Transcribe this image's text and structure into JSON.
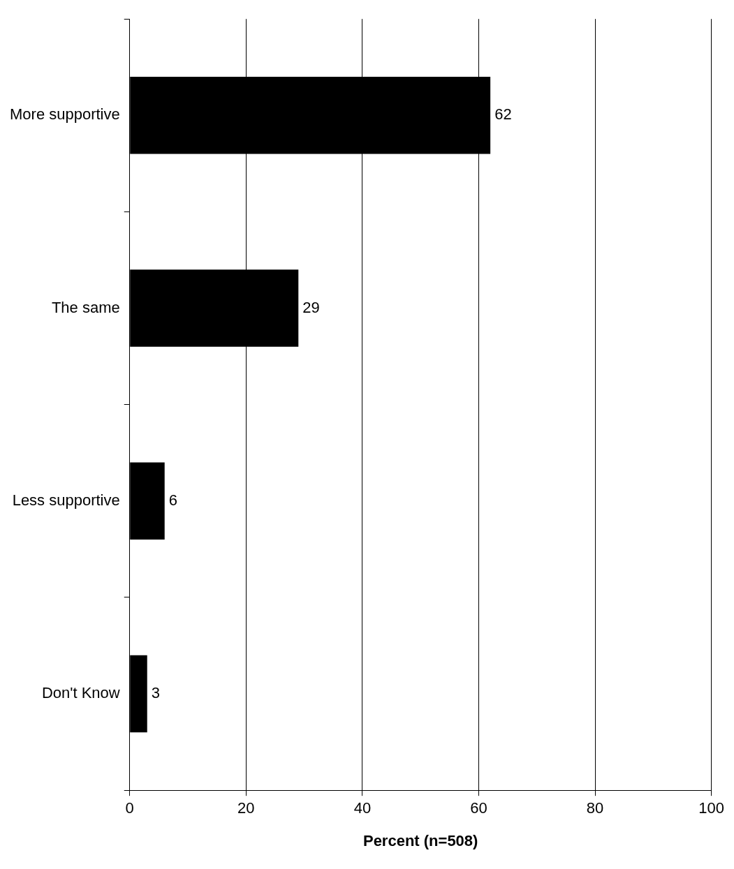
{
  "chart_data": {
    "type": "bar",
    "orientation": "horizontal",
    "categories": [
      "More supportive",
      "The same",
      "Less supportive",
      "Don't Know"
    ],
    "values": [
      62,
      29,
      6,
      3
    ],
    "color": "#000000",
    "xlabel": "Percent (n=508)",
    "xlim": [
      0,
      100
    ],
    "xticks": [
      0,
      20,
      40,
      60,
      80,
      100
    ],
    "grid": "x",
    "legend": false,
    "data_labels": true
  }
}
